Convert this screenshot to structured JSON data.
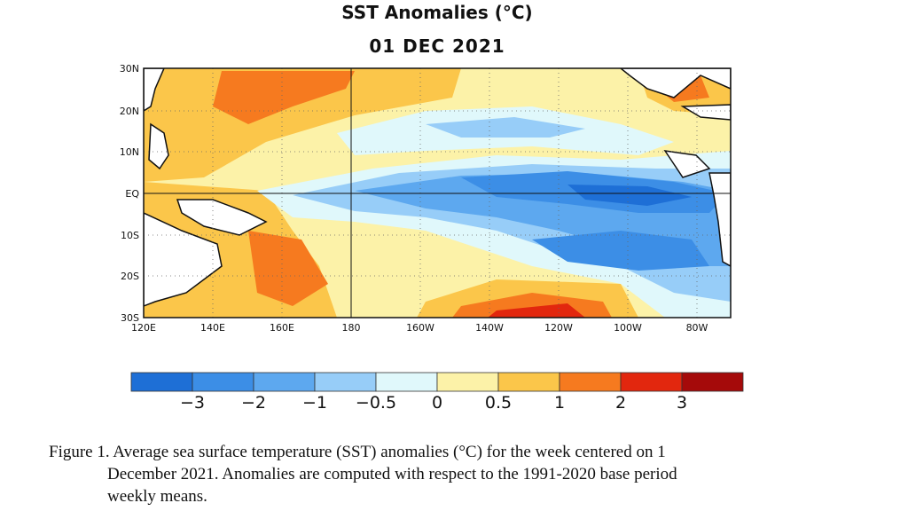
{
  "figure": {
    "title": "SST Anomalies (°C)",
    "subtitle": "01 DEC 2021",
    "caption_lines": [
      "Figure 1. Average sea surface temperature (SST) anomalies (°C) for the week centered on 1",
      "December 2021.  Anomalies are computed with respect to the 1991-2020 base period",
      "weekly means."
    ]
  },
  "map": {
    "lat_labels": [
      "30N",
      "20N",
      "10N",
      "EQ",
      "10S",
      "20S",
      "30S"
    ],
    "lon_labels": [
      "120E",
      "140E",
      "160E",
      "180",
      "160W",
      "140W",
      "120W",
      "100W",
      "80W"
    ],
    "lat_range": [
      -30,
      30
    ],
    "lon_range": [
      120,
      290
    ],
    "region": "Tropical Pacific Ocean"
  },
  "colorbar": {
    "labels": [
      "−3",
      "−2",
      "−1",
      "−0.5",
      "0",
      "0.5",
      "1",
      "2",
      "3"
    ],
    "colors": [
      "#1e6fd6",
      "#3c8ee6",
      "#5da8ef",
      "#97cdf8",
      "#e0f8fb",
      "#fcf2a8",
      "#fbc64a",
      "#f67a1f",
      "#e2270e",
      "#a50a0a"
    ]
  }
}
